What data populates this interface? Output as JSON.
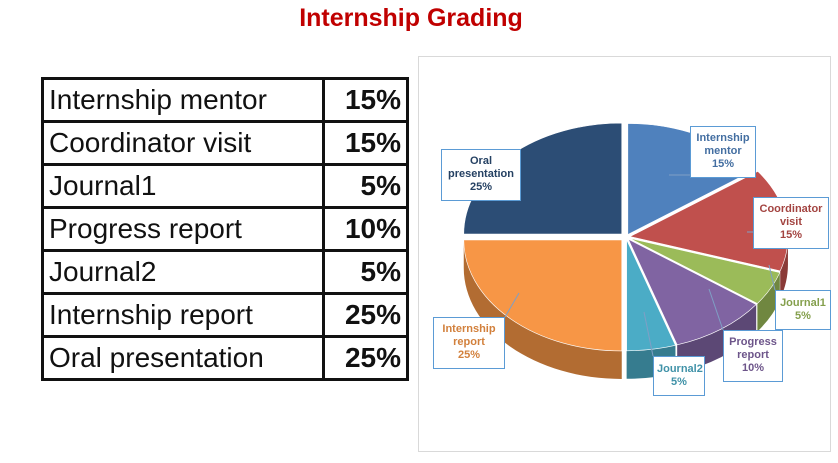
{
  "page": {
    "title": "Internship Grading"
  },
  "table": {
    "rows": [
      {
        "label": "Internship mentor",
        "value": "15%"
      },
      {
        "label": "Coordinator visit",
        "value": "15%"
      },
      {
        "label": "Journal1",
        "value": "5%"
      },
      {
        "label": "Progress report",
        "value": "10%"
      },
      {
        "label": "Journal2",
        "value": "5%"
      },
      {
        "label": "Internship report",
        "value": "25%"
      },
      {
        "label": "Oral presentation",
        "value": "25%"
      }
    ]
  },
  "chart_data": {
    "type": "pie",
    "style": "3d-exploded",
    "title": "",
    "slices": [
      {
        "name": "Internship mentor",
        "value": 15,
        "color": "#4f81bd",
        "label_line1": "Internship",
        "label_line2": "mentor",
        "label_pct": "15%"
      },
      {
        "name": "Coordinator visit",
        "value": 15,
        "color": "#c0504d",
        "label_line1": "Coordinator",
        "label_line2": "visit",
        "label_pct": "15%"
      },
      {
        "name": "Journal1",
        "value": 5,
        "color": "#9bbb59",
        "label_line1": "Journal1",
        "label_line2": "",
        "label_pct": "5%"
      },
      {
        "name": "Progress report",
        "value": 10,
        "color": "#8064a2",
        "label_line1": "Progress",
        "label_line2": "report",
        "label_pct": "10%"
      },
      {
        "name": "Journal2",
        "value": 5,
        "color": "#4bacc6",
        "label_line1": "Journal2",
        "label_line2": "",
        "label_pct": "5%"
      },
      {
        "name": "Internship report",
        "value": 25,
        "color": "#f79646",
        "label_line1": "Internship",
        "label_line2": "report",
        "label_pct": "25%"
      },
      {
        "name": "Oral presentation",
        "value": 25,
        "color": "#2c4d75",
        "label_line1": "Oral",
        "label_line2": "presentation",
        "label_pct": "25%"
      }
    ]
  }
}
